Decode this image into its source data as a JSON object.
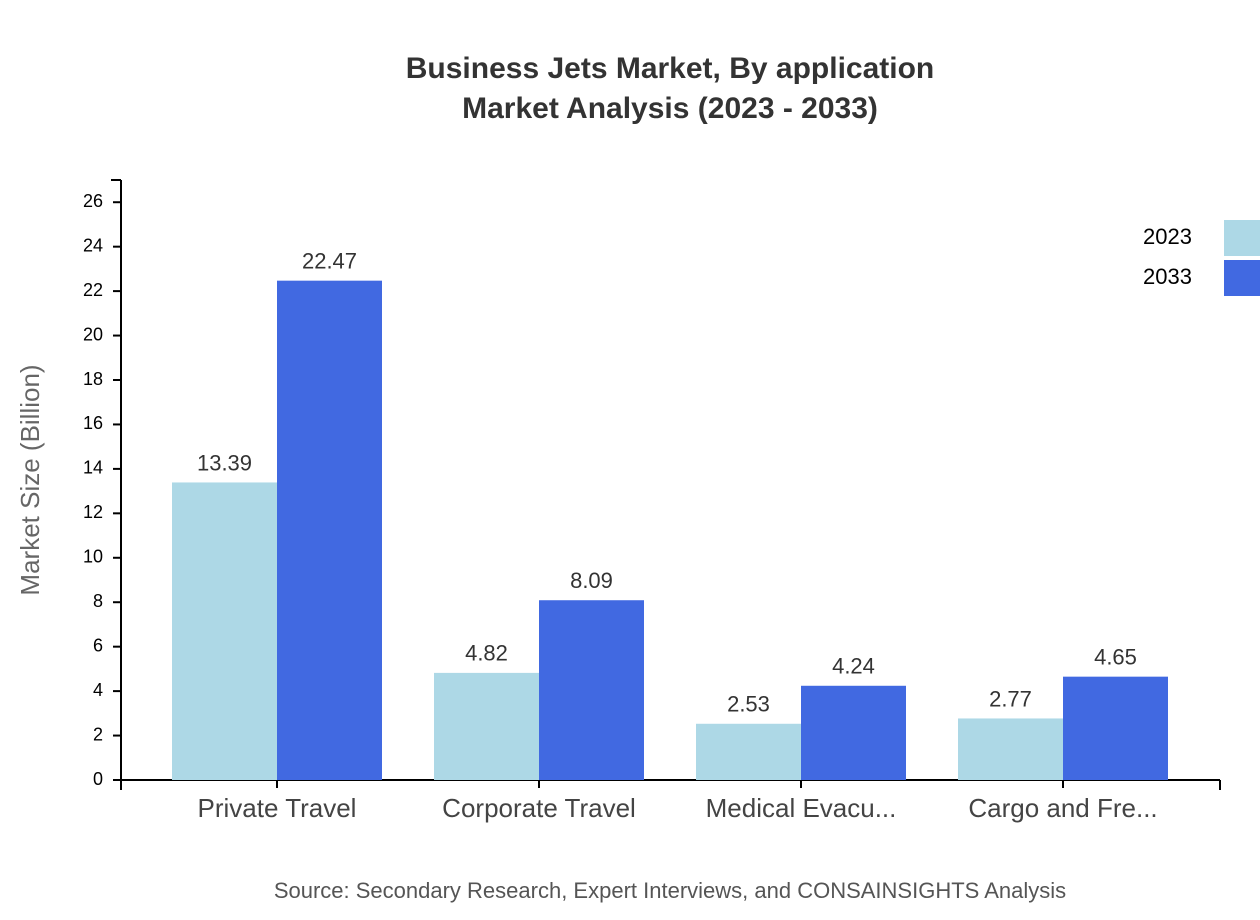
{
  "chart_data": {
    "type": "bar",
    "title": "Business Jets Market, By application",
    "subtitle": "Market Analysis (2023 - 2033)",
    "y_label": "Market Size (Billion)",
    "source": "Source: Secondary Research, Expert Interviews, and CONSAINSIGHTS Analysis",
    "categories": [
      "Private Travel",
      "Corporate Travel",
      "Medical Evacu...",
      "Cargo and Fre..."
    ],
    "series": [
      {
        "name": "2023",
        "color": "#add8e6",
        "values": [
          13.39,
          4.82,
          2.53,
          2.77
        ]
      },
      {
        "name": "2033",
        "color": "#4169e1",
        "values": [
          22.47,
          8.09,
          4.24,
          4.65
        ]
      }
    ],
    "ylim": [
      0,
      27
    ],
    "yticks": [
      0,
      2,
      4,
      6,
      8,
      10,
      12,
      14,
      16,
      18,
      20,
      22,
      24,
      26
    ],
    "legend": "top-right"
  }
}
